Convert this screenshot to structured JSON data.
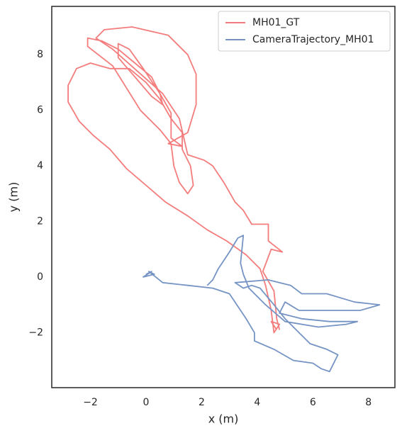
{
  "chart_data": {
    "type": "line",
    "xlabel": "x (m)",
    "ylabel": "y (m)",
    "xlim": [
      -3.39,
      8.95
    ],
    "ylim": [
      -3.98,
      9.74
    ],
    "xticks": [
      {
        "value": -2,
        "label": "−2"
      },
      0,
      2,
      4,
      6,
      8
    ],
    "yticks": [
      {
        "value": -2,
        "label": "−2"
      },
      0,
      2,
      4,
      6,
      8
    ],
    "grid": false,
    "legend": "upper right",
    "series": [
      {
        "name": "MH01_GT",
        "color": "#f47c7c",
        "x": [
          4.7,
          4.5,
          4.8,
          4.6,
          4.5,
          4.3,
          4.1,
          3.6,
          2.9,
          2.2,
          1.5,
          0.7,
          0.0,
          -0.7,
          -1.3,
          -1.9,
          -2.4,
          -2.8,
          -2.8,
          -2.5,
          -2.0,
          -1.3,
          -0.6,
          0.0,
          0.5,
          0.9,
          1.3,
          1.3,
          1.6,
          1.7,
          1.5,
          1.2,
          1.0,
          0.9,
          0.5,
          -0.2,
          -0.7,
          -1.2,
          -2.1,
          -2.1,
          -1.6,
          -1.0,
          -0.4,
          0.2,
          0.5,
          0.6,
          0.2,
          -0.4,
          -1.0,
          -1.0,
          -0.6,
          -0.1,
          0.5,
          0.9,
          0.9,
          1.3,
          0.8,
          1.5,
          1.8,
          1.8,
          1.5,
          0.8,
          -0.5,
          -1.5,
          -1.8,
          -1.2,
          -0.3,
          0.6,
          1.2,
          1.5,
          2.1,
          2.4,
          2.8,
          3.2,
          3.5,
          3.8,
          4.4,
          4.4,
          4.9,
          4.5,
          4.2,
          4.6,
          4.7,
          4.8
        ],
        "values": [
          -1.9,
          -1.6,
          -1.7,
          -2.0,
          -1.2,
          -0.3,
          0.3,
          0.8,
          1.3,
          1.7,
          2.2,
          2.7,
          3.3,
          3.9,
          4.6,
          5.1,
          5.6,
          6.3,
          6.9,
          7.5,
          7.7,
          7.5,
          7.5,
          7.0,
          6.4,
          5.7,
          5.2,
          4.6,
          4.0,
          3.3,
          3.0,
          3.4,
          4.0,
          4.8,
          5.3,
          6.0,
          6.8,
          7.6,
          8.3,
          8.6,
          8.5,
          8.2,
          7.7,
          7.2,
          6.6,
          6.2,
          6.5,
          7.2,
          7.9,
          8.4,
          8.2,
          7.5,
          6.6,
          5.9,
          5.0,
          4.7,
          4.8,
          5.2,
          6.2,
          7.3,
          8.0,
          8.7,
          9.0,
          8.9,
          8.6,
          8.2,
          7.4,
          6.6,
          5.7,
          4.4,
          4.2,
          4.0,
          3.4,
          2.7,
          2.4,
          1.9,
          1.9,
          1.3,
          0.9,
          1.0,
          0.2,
          -0.5,
          -1.5,
          -1.9
        ]
      },
      {
        "name": "CameraTrajectory_MH01",
        "color": "#7594c4",
        "x": [
          0.0,
          0.2,
          -0.1,
          0.3,
          0.1,
          0.6,
          1.5,
          2.4,
          3.0,
          3.6,
          3.9,
          3.9,
          4.6,
          5.3,
          6.0,
          6.3,
          6.6,
          6.9,
          6.5,
          5.9,
          5.5,
          5.0,
          4.6,
          4.1,
          3.8,
          3.5,
          3.2,
          4.4,
          5.2,
          5.6,
          6.5,
          7.5,
          8.4,
          7.7,
          6.5,
          5.5,
          5.0,
          4.8,
          5.6,
          6.6,
          7.6,
          7.2,
          6.2,
          5.0,
          4.3,
          3.7,
          3.5,
          3.4,
          3.5,
          3.3,
          3.0,
          2.6,
          2.4,
          2.2
        ],
        "values": [
          0.1,
          0.2,
          0.0,
          0.1,
          0.2,
          -0.2,
          -0.3,
          -0.4,
          -0.6,
          -1.5,
          -2.0,
          -2.3,
          -2.6,
          -3.0,
          -3.1,
          -3.3,
          -3.4,
          -2.8,
          -2.6,
          -2.4,
          -2.0,
          -1.5,
          -1.0,
          -0.4,
          -0.3,
          -0.4,
          -0.2,
          -0.1,
          -0.3,
          -0.6,
          -0.6,
          -0.9,
          -1.0,
          -1.2,
          -1.2,
          -1.2,
          -0.9,
          -1.3,
          -1.5,
          -1.6,
          -1.6,
          -1.7,
          -1.8,
          -1.6,
          -1.0,
          -0.4,
          0.1,
          0.5,
          1.5,
          1.4,
          0.9,
          0.3,
          -0.1,
          -0.3
        ]
      }
    ]
  }
}
